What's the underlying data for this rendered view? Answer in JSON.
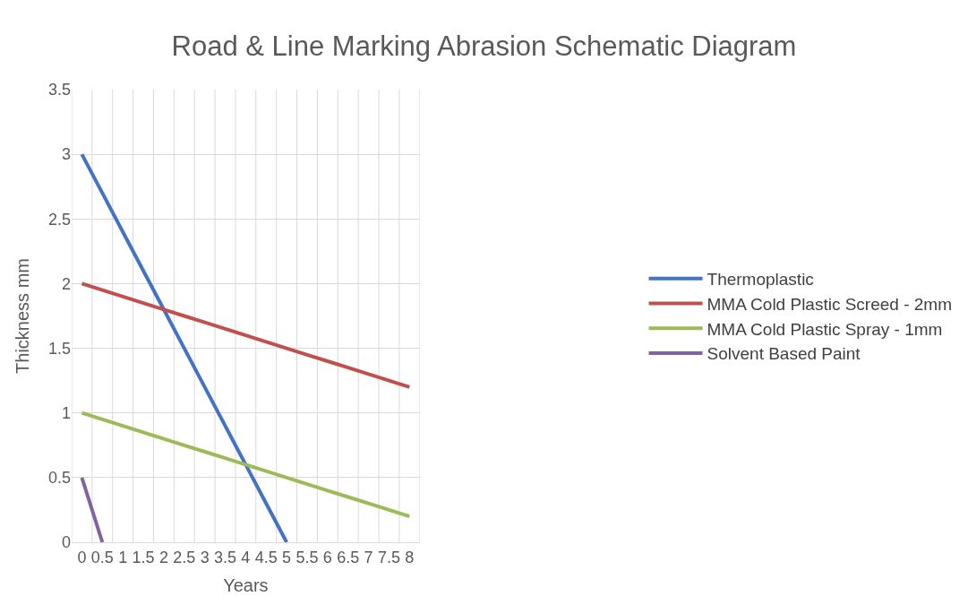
{
  "chart_data": {
    "type": "line",
    "title": "Road & Line Marking Abrasion Schematic Diagram",
    "xlabel": "Years",
    "ylabel": "Thickness mm",
    "categories": [
      "0",
      "0.5",
      "1",
      "1.5",
      "2",
      "2.5",
      "3",
      "3.5",
      "4",
      "4.5",
      "5",
      "5.5",
      "6",
      "6.5",
      "7",
      "7.5",
      "8"
    ],
    "series": [
      {
        "name": "Thermoplastic",
        "color": "#4472c4",
        "values": [
          3,
          2.7,
          2.4,
          2.1,
          1.8,
          1.5,
          1.2,
          0.9,
          0.6,
          0.3,
          0,
          null,
          null,
          null,
          null,
          null,
          null
        ]
      },
      {
        "name": "MMA Cold Plastic Screed - 2mm",
        "color": "#c0504d",
        "values": [
          2,
          1.95,
          1.9,
          1.85,
          1.8,
          1.75,
          1.7,
          1.65,
          1.6,
          1.55,
          1.5,
          1.45,
          1.4,
          1.35,
          1.3,
          1.25,
          1.2
        ]
      },
      {
        "name": "MMA Cold Plastic Spray - 1mm",
        "color": "#9bbb59",
        "values": [
          1,
          0.95,
          0.9,
          0.85,
          0.8,
          0.75,
          0.7,
          0.65,
          0.6,
          0.55,
          0.5,
          0.45,
          0.4,
          0.35,
          0.3,
          0.25,
          0.2
        ]
      },
      {
        "name": "Solvent Based Paint",
        "color": "#8064a2",
        "values": [
          0.5,
          0,
          null,
          null,
          null,
          null,
          null,
          null,
          null,
          null,
          null,
          null,
          null,
          null,
          null,
          null,
          null
        ]
      }
    ],
    "ylim": [
      0,
      3.5
    ],
    "yticks": [
      0,
      0.5,
      1,
      1.5,
      2,
      2.5,
      3,
      3.5
    ],
    "grid": true,
    "legend": "right",
    "marker": "none",
    "line_style": "solid"
  }
}
